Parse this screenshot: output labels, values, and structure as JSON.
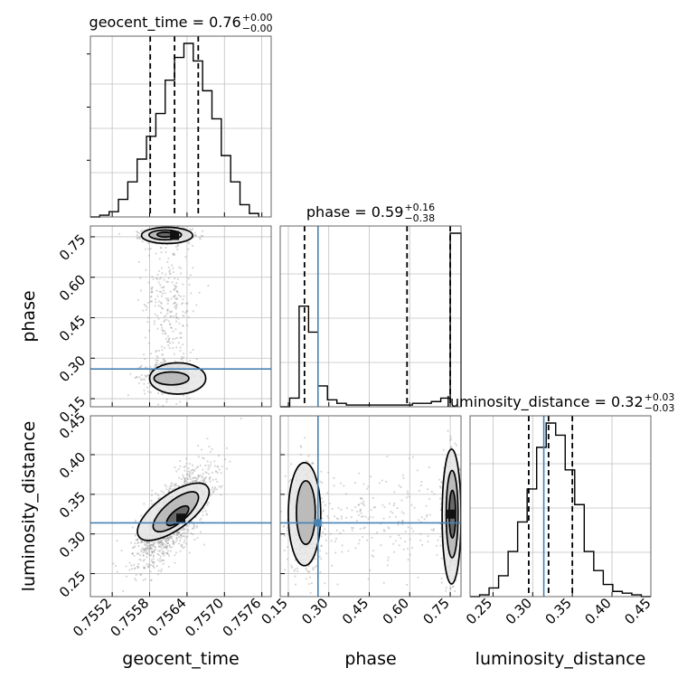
{
  "colors": {
    "truth": "#4682b4",
    "hist": "#000000",
    "points": "#9a9a9a",
    "grid": "#c0c0c0"
  },
  "titles": {
    "geocent_time": {
      "main": "geocent_time = 0.76",
      "sup": "+0.00",
      "sub": "−0.00"
    },
    "phase": {
      "main": "phase = 0.59",
      "sup": "+0.16",
      "sub": "−0.38"
    },
    "luminosity_distance": {
      "main": "luminosity_distance = 0.32",
      "sup": "+0.03",
      "sub": "−0.03"
    }
  },
  "axis_labels": {
    "geocent_time": "geocent_time",
    "phase": "phase",
    "luminosity_distance": "luminosity_distance"
  },
  "chart_data": {
    "type": "corner",
    "parameters": [
      "geocent_time",
      "phase",
      "luminosity_distance"
    ],
    "truths": {
      "geocent_time": null,
      "phase": 0.26,
      "luminosity_distance": 0.314
    },
    "ranges": {
      "geocent_time": [
        0.75485,
        0.75775
      ],
      "phase": [
        0.12,
        0.79
      ],
      "luminosity_distance": [
        0.221,
        0.449
      ]
    },
    "ticks": {
      "geocent_time": [
        0.7552,
        0.7558,
        0.7564,
        0.757,
        0.7576
      ],
      "phase": [
        0.15,
        0.3,
        0.45,
        0.6,
        0.75
      ],
      "luminosity_distance": [
        0.25,
        0.3,
        0.35,
        0.4,
        0.45
      ]
    },
    "tick_labels": {
      "geocent_time": [
        "0.7552",
        "0.7558",
        "0.7564",
        "0.7570",
        "0.7576"
      ],
      "phase": [
        "0.15",
        "0.30",
        "0.45",
        "0.60",
        "0.75"
      ],
      "luminosity_distance": [
        "0.25",
        "0.30",
        "0.35",
        "0.40",
        "0.45"
      ]
    },
    "quantiles": {
      "geocent_time": [
        0.75581,
        0.7562,
        0.75658
      ],
      "phase": [
        0.21,
        0.59,
        0.75
      ],
      "luminosity_distance": [
        0.295,
        0.32,
        0.35
      ]
    },
    "histograms": {
      "geocent_time": {
        "edges": [
          0.75485,
          0.755,
          0.75515,
          0.7553,
          0.75545,
          0.7556,
          0.75575,
          0.7559,
          0.75605,
          0.7562,
          0.75635,
          0.7565,
          0.75665,
          0.7568,
          0.75695,
          0.7571,
          0.75725,
          0.7574,
          0.75755
        ],
        "counts": [
          0,
          1,
          3,
          10,
          20,
          33,
          46,
          59,
          78,
          91,
          99,
          89,
          72,
          56,
          35,
          20,
          7,
          2
        ]
      },
      "phase": {
        "edges": [
          0.12,
          0.155,
          0.19,
          0.225,
          0.26,
          0.295,
          0.33,
          0.365,
          0.4,
          0.435,
          0.47,
          0.505,
          0.54,
          0.575,
          0.61,
          0.645,
          0.68,
          0.715,
          0.75,
          0.79
        ],
        "counts": [
          0,
          5,
          58,
          43,
          12,
          4,
          2,
          1,
          1,
          1,
          1,
          1,
          1,
          1,
          2,
          2,
          3,
          5,
          100
        ]
      },
      "luminosity_distance": {
        "edges": [
          0.221,
          0.233,
          0.245,
          0.257,
          0.269,
          0.281,
          0.293,
          0.305,
          0.317,
          0.329,
          0.341,
          0.353,
          0.365,
          0.377,
          0.389,
          0.401,
          0.413,
          0.425,
          0.437,
          0.449
        ],
        "counts": [
          0,
          1,
          5,
          12,
          26,
          43,
          62,
          86,
          100,
          93,
          73,
          53,
          26,
          15,
          7,
          3,
          2,
          1,
          0
        ]
      }
    },
    "scatter_model": {
      "geocent_time_phase": {
        "x": "geocent_time",
        "y": "phase",
        "clusters": [
          {
            "cx": 0.75608,
            "cy": 0.755,
            "sx": 0.00019,
            "sy": 0.012,
            "weight": 0.45
          },
          {
            "cx": 0.75615,
            "cy": 0.235,
            "sx": 0.00021,
            "sy": 0.028,
            "weight": 0.35
          },
          {
            "cx": 0.7561,
            "cy": 0.5,
            "sx": 0.0002,
            "sy": 0.16,
            "weight": 0.2
          }
        ],
        "densest": [
          0.7562,
          0.755
        ]
      },
      "geocent_time_luminosity_distance": {
        "x": "geocent_time",
        "y": "luminosity_distance",
        "clusters": [
          {
            "cx": 0.75618,
            "cy": 0.322,
            "sx": 0.0003,
            "sy": 0.03,
            "rho": 0.72,
            "weight": 1.0
          }
        ],
        "densest": [
          0.7563,
          0.32
        ]
      },
      "phase_luminosity_distance": {
        "x": "phase",
        "y": "luminosity_distance",
        "clusters": [
          {
            "cx": 0.755,
            "cy": 0.325,
            "sx": 0.015,
            "sy": 0.035,
            "weight": 0.5
          },
          {
            "cx": 0.215,
            "cy": 0.32,
            "sx": 0.03,
            "sy": 0.033,
            "weight": 0.35
          },
          {
            "cx": 0.48,
            "cy": 0.32,
            "sx": 0.17,
            "sy": 0.03,
            "weight": 0.15
          }
        ],
        "densest": [
          0.755,
          0.325
        ]
      }
    },
    "contours": {
      "geocent_time_phase": [
        {
          "cx": 0.75608,
          "cy": 0.755,
          "rx": 0.00041,
          "ry": 0.03,
          "level": "outer"
        },
        {
          "cx": 0.75605,
          "cy": 0.757,
          "rx": 0.00026,
          "ry": 0.018,
          "level": "mid"
        },
        {
          "cx": 0.75605,
          "cy": 0.758,
          "rx": 0.00013,
          "ry": 0.009,
          "level": "inner"
        },
        {
          "cx": 0.75625,
          "cy": 0.225,
          "rx": 0.00045,
          "ry": 0.058,
          "level": "outer"
        },
        {
          "cx": 0.75615,
          "cy": 0.225,
          "rx": 0.00028,
          "ry": 0.024,
          "level": "mid"
        }
      ],
      "geocent_time_luminosity_distance": [
        {
          "cx": 0.75618,
          "cy": 0.328,
          "rx": 0.00068,
          "ry": 0.022,
          "rot": -36,
          "level": "outer"
        },
        {
          "cx": 0.75622,
          "cy": 0.328,
          "rx": 0.00045,
          "ry": 0.014,
          "rot": -40,
          "level": "mid"
        },
        {
          "cx": 0.75625,
          "cy": 0.323,
          "rx": 0.00022,
          "ry": 0.007,
          "rot": -40,
          "level": "inner"
        }
      ],
      "phase_luminosity_distance": [
        {
          "cx": 0.21,
          "cy": 0.325,
          "rx": 0.06,
          "ry": 0.065,
          "level": "outer"
        },
        {
          "cx": 0.215,
          "cy": 0.327,
          "rx": 0.035,
          "ry": 0.04,
          "level": "mid"
        },
        {
          "cx": 0.755,
          "cy": 0.322,
          "rx": 0.035,
          "ry": 0.085,
          "level": "outer"
        },
        {
          "cx": 0.757,
          "cy": 0.325,
          "rx": 0.022,
          "ry": 0.055,
          "level": "mid"
        },
        {
          "cx": 0.758,
          "cy": 0.325,
          "rx": 0.012,
          "ry": 0.03,
          "level": "inner"
        }
      ]
    }
  }
}
